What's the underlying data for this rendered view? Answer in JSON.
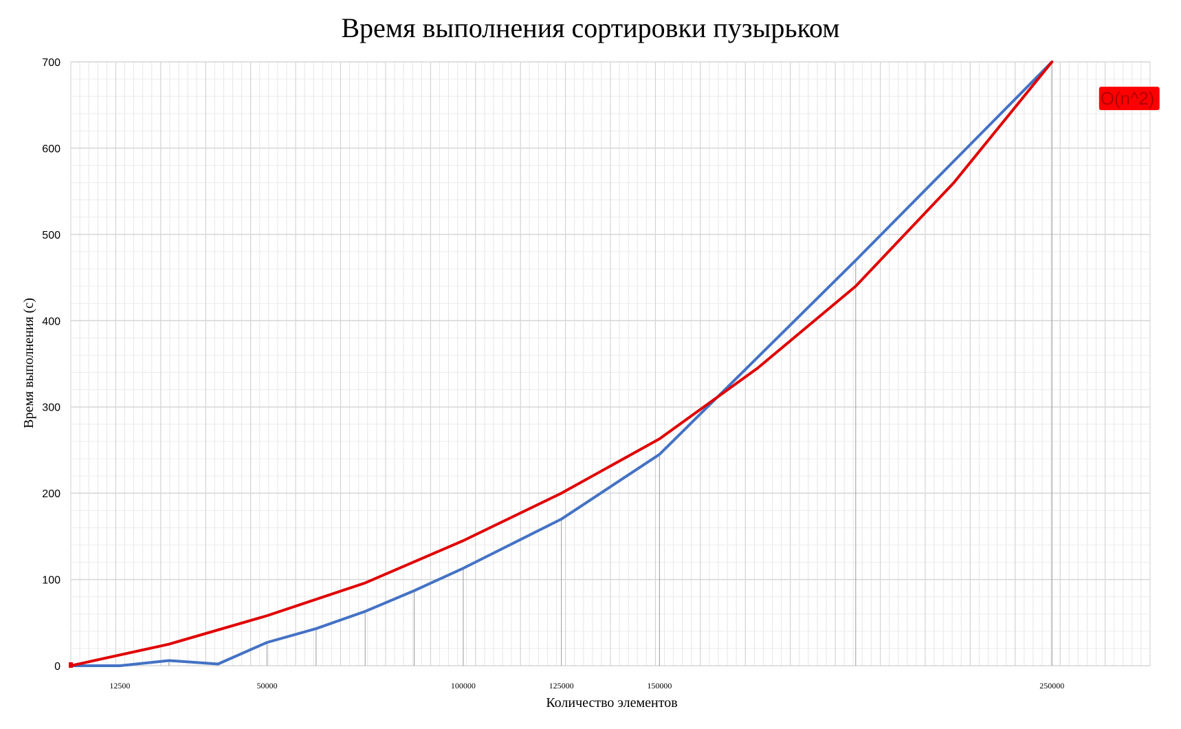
{
  "chart_data": {
    "type": "line",
    "title": "Время выполнения сортировки пузырьком",
    "xlabel": "Количество элементов",
    "ylabel": "Время выполнения (с)",
    "xlim": [
      0,
      275000
    ],
    "ylim": [
      0,
      700
    ],
    "yticks": [
      0,
      100,
      200,
      300,
      400,
      500,
      600,
      700
    ],
    "xticks": [
      {
        "value": 12500,
        "label": "12500"
      },
      {
        "value": 50000,
        "label": "50000"
      },
      {
        "value": 100000,
        "label": "100000"
      },
      {
        "value": 125000,
        "label": "125000"
      },
      {
        "value": 150000,
        "label": "150000"
      },
      {
        "value": 250000,
        "label": "250000"
      }
    ],
    "grid": true,
    "annotation": {
      "text": "O(n^2)",
      "x": 262000,
      "y": 660,
      "bg": "#ff0000"
    },
    "series": [
      {
        "color": "#4472c4",
        "x": [
          0,
          12500,
          25000,
          37500,
          50000,
          62500,
          75000,
          87500,
          100000,
          125000,
          150000,
          200000,
          250000
        ],
        "y": [
          0,
          0,
          6,
          2,
          27,
          43,
          63,
          87,
          113,
          170,
          245,
          470,
          700
        ]
      },
      {
        "color": "#e00000",
        "x": [
          0,
          25000,
          50000,
          75000,
          100000,
          125000,
          150000,
          175000,
          200000,
          225000,
          250000
        ],
        "y": [
          0,
          25,
          58,
          96,
          145,
          200,
          263,
          345,
          440,
          560,
          700
        ]
      }
    ]
  }
}
